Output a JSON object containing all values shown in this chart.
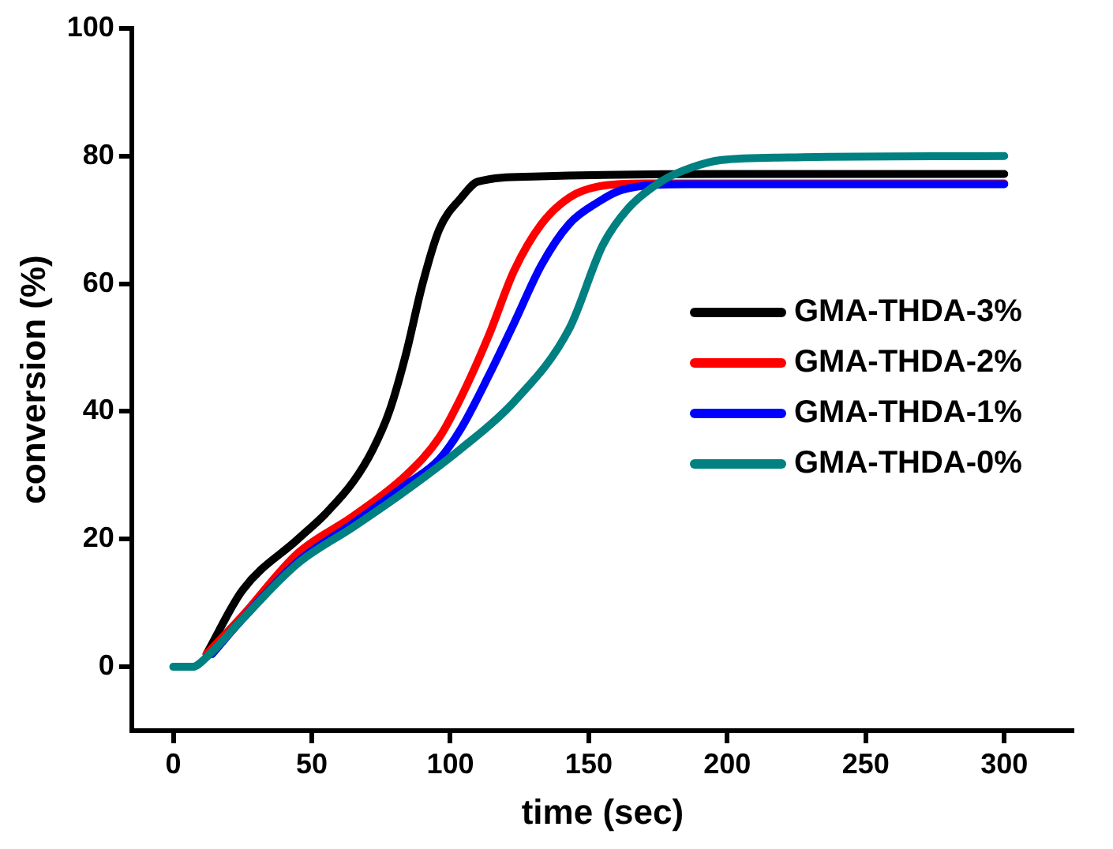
{
  "chart_data": {
    "type": "line",
    "xlabel": "time (sec)",
    "ylabel": "conversion (%)",
    "xlim": [
      -15,
      325
    ],
    "ylim": [
      -10,
      100
    ],
    "xticks": [
      0,
      50,
      100,
      150,
      200,
      250,
      300
    ],
    "yticks": [
      0,
      20,
      40,
      60,
      80,
      100
    ],
    "grid": false,
    "legend": "right",
    "marker": "none",
    "line_style": "solid",
    "series": [
      {
        "name": "GMA-THDA-3%",
        "color": "#000000",
        "x": [
          12,
          25,
          45,
          55,
          65,
          72,
          78,
          84,
          90,
          96,
          104,
          110,
          130,
          200,
          300
        ],
        "values": [
          2,
          12,
          20,
          24,
          29,
          34,
          40,
          49,
          60,
          68.5,
          73.5,
          76,
          76.8,
          77.2,
          77.2
        ]
      },
      {
        "name": "GMA-THDA-2%",
        "color": "#ff0000",
        "x": [
          12,
          25,
          45,
          65,
          84,
          96,
          104,
          114,
          123,
          133,
          143,
          153,
          170,
          200,
          300
        ],
        "values": [
          2,
          8,
          17.8,
          23.6,
          30,
          35.9,
          42.3,
          52,
          62,
          69.4,
          73.5,
          75.2,
          75.7,
          75.7,
          75.7
        ]
      },
      {
        "name": "GMA-THDA-1%",
        "color": "#0000ff",
        "x": [
          14,
          25,
          45,
          65,
          84,
          96,
          104,
          114,
          123,
          133,
          143,
          153,
          162,
          185,
          300
        ],
        "values": [
          2,
          7.5,
          16.5,
          22.5,
          28.5,
          32.5,
          37.4,
          45.7,
          53.8,
          63,
          69.4,
          72.7,
          74.7,
          75.6,
          75.6
        ]
      },
      {
        "name": "GMA-THDA-0%",
        "color": "#008080",
        "x": [
          0,
          7,
          12,
          25,
          45,
          65,
          84,
          104,
          123,
          143,
          155,
          164,
          176,
          187,
          198,
          222,
          300
        ],
        "values": [
          0,
          0,
          1.5,
          7.5,
          16.2,
          21.9,
          27.6,
          34.2,
          41.5,
          53,
          66,
          71.7,
          76,
          78.2,
          79.4,
          79.8,
          80
        ]
      }
    ]
  }
}
